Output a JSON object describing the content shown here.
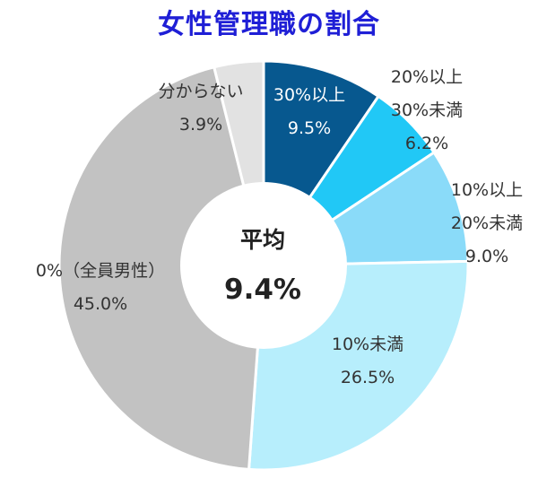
{
  "chart_data": {
    "type": "pie",
    "title": "女性管理職の割合",
    "center": {
      "label": "平均",
      "value": "9.4%"
    },
    "slices": [
      {
        "label_lines": [
          "30%以上"
        ],
        "value": 9.5,
        "value_text": "9.5%",
        "color": "#07588f",
        "text_color": "#ffffff"
      },
      {
        "label_lines": [
          "20%以上",
          "30%未満"
        ],
        "value": 6.2,
        "value_text": "6.2%",
        "color": "#21c8f6",
        "text_color": "#333333"
      },
      {
        "label_lines": [
          "10%以上",
          "20%未満"
        ],
        "value": 9.0,
        "value_text": "9.0%",
        "color": "#8adbf9",
        "text_color": "#333333"
      },
      {
        "label_lines": [
          "10%未満"
        ],
        "value": 26.5,
        "value_text": "26.5%",
        "color": "#b7eefc",
        "text_color": "#333333"
      },
      {
        "label_lines": [
          "0%（全員男性）"
        ],
        "value": 45.0,
        "value_text": "45.0%",
        "color": "#c2c2c2",
        "text_color": "#333333"
      },
      {
        "label_lines": [
          "分からない"
        ],
        "value": 3.9,
        "value_text": "3.9%",
        "color": "#e2e2e2",
        "text_color": "#333333"
      }
    ]
  }
}
